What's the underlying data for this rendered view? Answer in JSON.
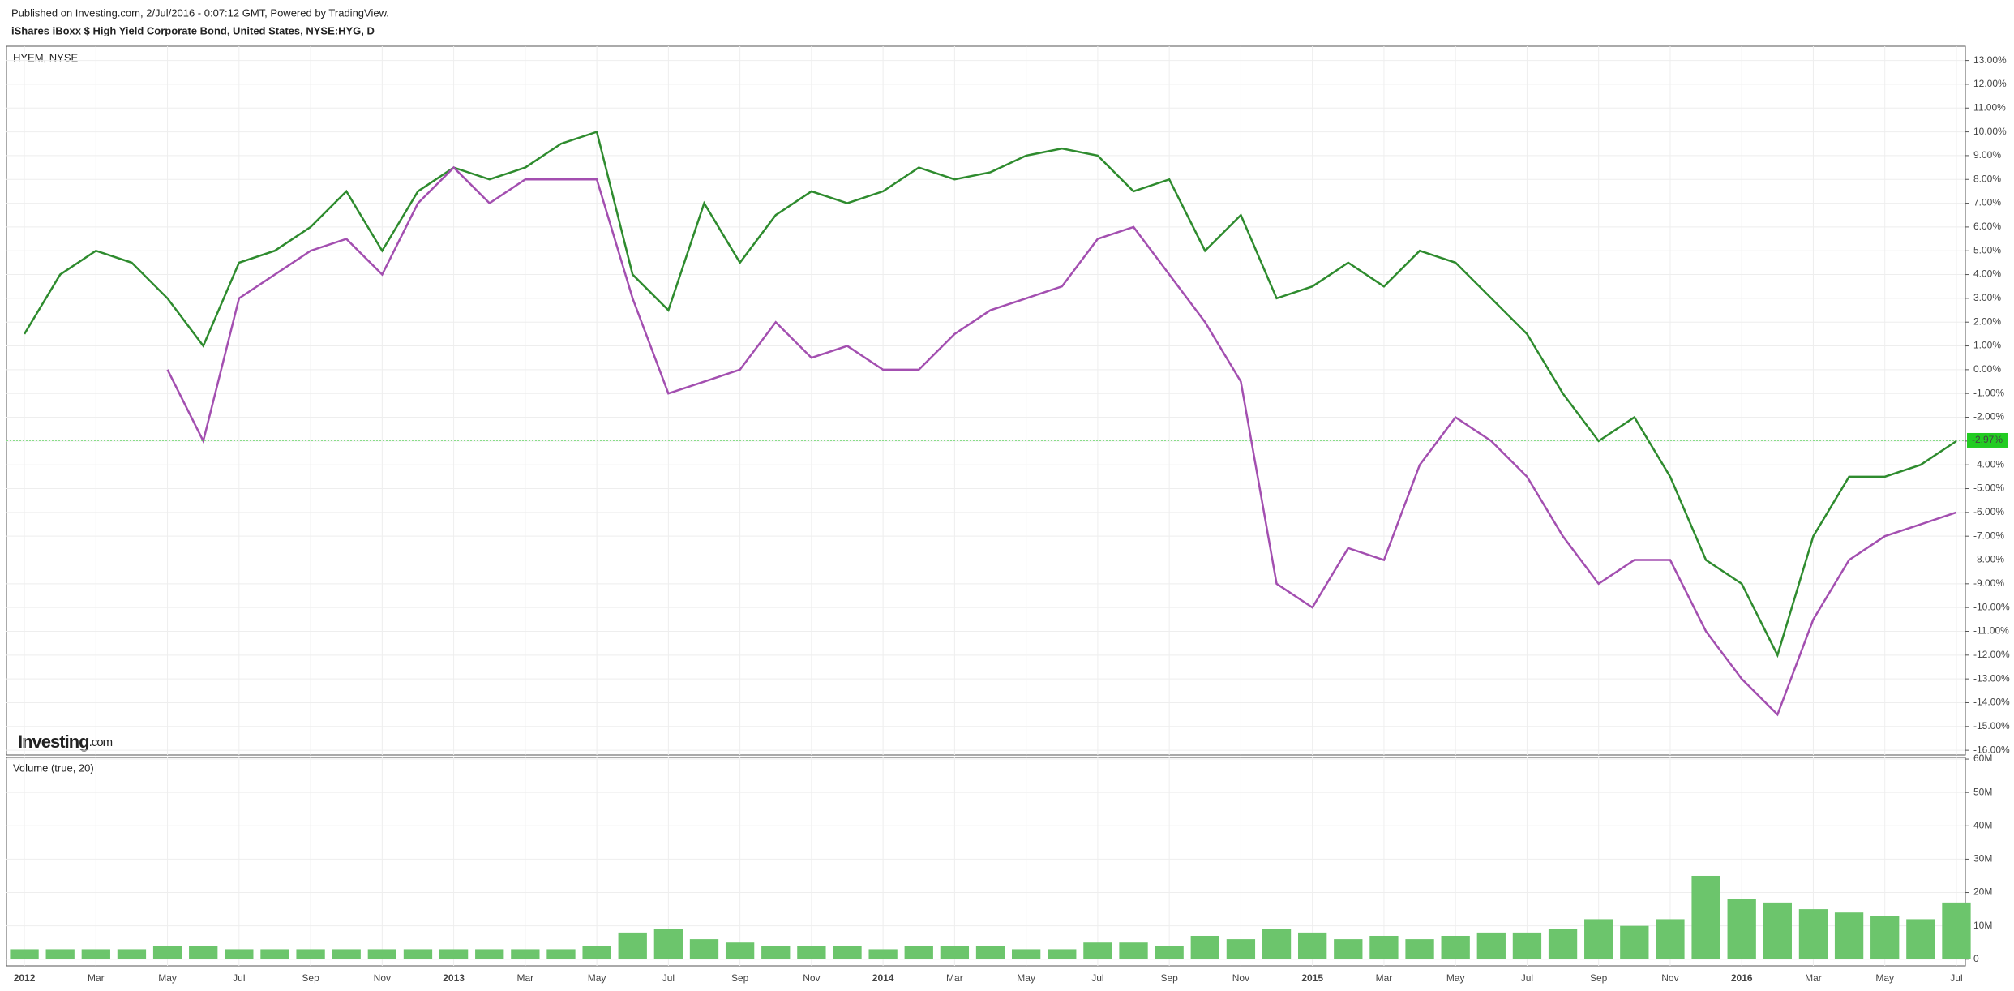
{
  "header": {
    "published": "Published on Investing.com, 2/Jul/2016 - 0:07:12 GMT, Powered by TradingView.",
    "symbol": "iShares iBoxx $ High Yield Corporate Bond, United States, NYSE:HYG, D",
    "logo": "Investing",
    "logo_suffix": ".com"
  },
  "chart_data": [
    {
      "type": "line",
      "grid": true,
      "x": [
        0,
        1,
        2,
        3,
        4,
        5,
        6,
        7,
        8,
        9,
        10,
        11,
        12,
        13,
        14,
        15,
        16,
        17,
        18,
        19,
        20,
        21,
        22,
        23,
        24,
        25,
        26,
        27,
        28,
        29,
        30,
        31,
        32,
        33,
        34,
        35,
        36,
        37,
        38,
        39,
        40,
        41,
        42,
        43,
        44,
        45,
        46,
        47,
        48,
        49,
        50,
        51,
        52,
        53,
        54
      ],
      "xlim": [
        -0.5,
        54.25
      ],
      "xticks": [
        {
          "value": 0,
          "label": "2012"
        },
        {
          "value": 2,
          "label": "Mar"
        },
        {
          "value": 4,
          "label": "May"
        },
        {
          "value": 6,
          "label": "Jul"
        },
        {
          "value": 8,
          "label": "Sep"
        },
        {
          "value": 10,
          "label": "Nov"
        },
        {
          "value": 12,
          "label": "2013"
        },
        {
          "value": 14,
          "label": "Mar"
        },
        {
          "value": 16,
          "label": "May"
        },
        {
          "value": 18,
          "label": "Jul"
        },
        {
          "value": 20,
          "label": "Sep"
        },
        {
          "value": 22,
          "label": "Nov"
        },
        {
          "value": 24,
          "label": "2014"
        },
        {
          "value": 26,
          "label": "Mar"
        },
        {
          "value": 28,
          "label": "May"
        },
        {
          "value": 30,
          "label": "Jul"
        },
        {
          "value": 32,
          "label": "Sep"
        },
        {
          "value": 34,
          "label": "Nov"
        },
        {
          "value": 36,
          "label": "2015"
        },
        {
          "value": 38,
          "label": "Mar"
        },
        {
          "value": 40,
          "label": "May"
        },
        {
          "value": 42,
          "label": "Jul"
        },
        {
          "value": 44,
          "label": "Sep"
        },
        {
          "value": 46,
          "label": "Nov"
        },
        {
          "value": 48,
          "label": "2016"
        },
        {
          "value": 50,
          "label": "Mar"
        },
        {
          "value": 52,
          "label": "May"
        },
        {
          "value": 54,
          "label": "Jul"
        }
      ],
      "ylim": [
        -16.2,
        13.6
      ],
      "yticks": [
        {
          "value": 13,
          "label": "13.00%"
        },
        {
          "value": 12,
          "label": "12.00%"
        },
        {
          "value": 11,
          "label": "11.00%"
        },
        {
          "value": 10,
          "label": "10.00%"
        },
        {
          "value": 9,
          "label": "9.00%"
        },
        {
          "value": 8,
          "label": "8.00%"
        },
        {
          "value": 7,
          "label": "7.00%"
        },
        {
          "value": 6,
          "label": "6.00%"
        },
        {
          "value": 5,
          "label": "5.00%"
        },
        {
          "value": 4,
          "label": "4.00%"
        },
        {
          "value": 3,
          "label": "3.00%"
        },
        {
          "value": 2,
          "label": "2.00%"
        },
        {
          "value": 1,
          "label": "1.00%"
        },
        {
          "value": 0,
          "label": "0.00%"
        },
        {
          "value": -1,
          "label": "-1.00%"
        },
        {
          "value": -2,
          "label": "-2.00%"
        },
        {
          "value": -3,
          "label": "-3.00%"
        },
        {
          "value": -4,
          "label": "-4.00%"
        },
        {
          "value": -5,
          "label": "-5.00%"
        },
        {
          "value": -6,
          "label": "-6.00%"
        },
        {
          "value": -7,
          "label": "-7.00%"
        },
        {
          "value": -8,
          "label": "-8.00%"
        },
        {
          "value": -9,
          "label": "-9.00%"
        },
        {
          "value": -10,
          "label": "-10.00%"
        },
        {
          "value": -11,
          "label": "-11.00%"
        },
        {
          "value": -12,
          "label": "-12.00%"
        },
        {
          "value": -13,
          "label": "-13.00%"
        },
        {
          "value": -14,
          "label": "-14.00%"
        },
        {
          "value": -15,
          "label": "-15.00%"
        },
        {
          "value": -16,
          "label": "-16.00%"
        }
      ],
      "series": [
        {
          "color": "#2e8b2e",
          "values": [
            1.5,
            4,
            5,
            4.5,
            3,
            1,
            4.5,
            5,
            6,
            7.5,
            5,
            7.5,
            8.5,
            8,
            8.5,
            9.5,
            10,
            4,
            2.5,
            7,
            4.5,
            6.5,
            7.5,
            7,
            7.5,
            8.5,
            8,
            8.3,
            9,
            9.3,
            9,
            7.5,
            8,
            5,
            6.5,
            3,
            3.5,
            4.5,
            3.5,
            5,
            4.5,
            3,
            1.5,
            -1,
            -3,
            -2,
            -4.5,
            -8,
            -9,
            -12,
            -7,
            -4.5,
            -4.5,
            -4,
            -3
          ]
        },
        {
          "name": "HYEM, NYSE",
          "color": "#a34fb0",
          "values": [
            null,
            null,
            null,
            null,
            0,
            -3,
            3,
            4,
            5,
            5.5,
            4,
            7,
            8.5,
            7,
            8,
            8,
            8,
            3,
            -1,
            -0.5,
            0,
            2,
            0.5,
            1,
            0,
            0,
            1.5,
            2.5,
            3,
            3.5,
            5.5,
            6,
            4,
            2,
            -0.5,
            -9,
            -10,
            -7.5,
            -8,
            -4,
            -2,
            -3,
            -4.5,
            -7,
            -9,
            -8,
            -8,
            -11,
            -13,
            -14.5,
            -10.5,
            -8,
            -7,
            -6.5,
            -6
          ]
        }
      ],
      "annotation": {
        "value": -2.97,
        "label": "-2.97%",
        "color": "#22cc22"
      }
    },
    {
      "type": "bar",
      "title": "Volume (true, 20)",
      "color": "#6cc56c",
      "ylim": [
        -2000000,
        60500000
      ],
      "yticks": [
        {
          "value": 0,
          "label": "0"
        },
        {
          "value": 10000000,
          "label": "10M"
        },
        {
          "value": 20000000,
          "label": "20M"
        },
        {
          "value": 30000000,
          "label": "30M"
        },
        {
          "value": 40000000,
          "label": "40M"
        },
        {
          "value": 50000000,
          "label": "50M"
        },
        {
          "value": 60000000,
          "label": "60M"
        }
      ],
      "values": [
        3000000,
        3000000,
        3000000,
        3000000,
        4000000,
        4000000,
        3000000,
        3000000,
        3000000,
        3000000,
        3000000,
        3000000,
        3000000,
        3000000,
        3000000,
        3000000,
        4000000,
        8000000,
        9000000,
        6000000,
        5000000,
        4000000,
        4000000,
        4000000,
        3000000,
        4000000,
        4000000,
        4000000,
        3000000,
        3000000,
        5000000,
        5000000,
        4000000,
        7000000,
        6000000,
        9000000,
        8000000,
        6000000,
        7000000,
        6000000,
        7000000,
        8000000,
        8000000,
        9000000,
        12000000,
        10000000,
        12000000,
        25000000,
        18000000,
        17000000,
        15000000,
        14000000,
        13000000,
        12000000,
        17000000
      ]
    }
  ]
}
